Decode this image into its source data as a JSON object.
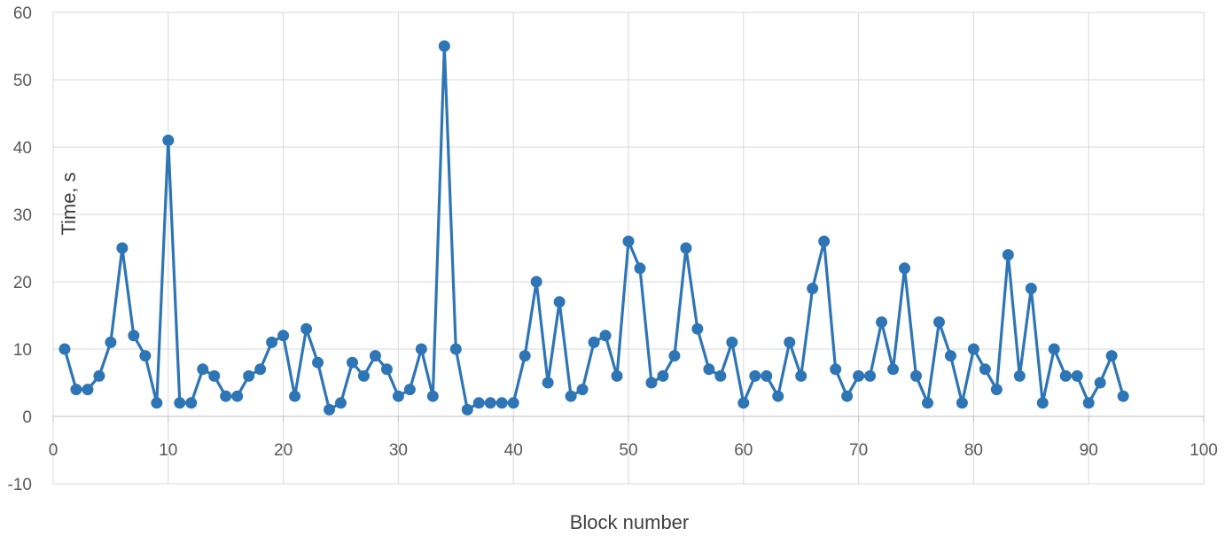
{
  "chart_data": {
    "type": "line",
    "title": "",
    "xlabel": "Block number",
    "ylabel": "Time, s",
    "xlim": [
      0,
      100
    ],
    "ylim": [
      -10,
      60
    ],
    "x_ticks": [
      0,
      10,
      20,
      30,
      40,
      50,
      60,
      70,
      80,
      90,
      100
    ],
    "y_ticks": [
      -10,
      0,
      10,
      20,
      30,
      40,
      50,
      60
    ],
    "grid": true,
    "legend": "none",
    "series": [
      {
        "color": "#2e75b6",
        "marker": "circle",
        "x": [
          1,
          2,
          3,
          4,
          5,
          6,
          7,
          8,
          9,
          10,
          11,
          12,
          13,
          14,
          15,
          16,
          17,
          18,
          19,
          20,
          21,
          22,
          23,
          24,
          25,
          26,
          27,
          28,
          29,
          30,
          31,
          32,
          33,
          34,
          35,
          36,
          37,
          38,
          39,
          40,
          41,
          42,
          43,
          44,
          45,
          46,
          47,
          48,
          49,
          50,
          51,
          52,
          53,
          54,
          55,
          56,
          57,
          58,
          59,
          60,
          61,
          62,
          63,
          64,
          65,
          66,
          67,
          68,
          69,
          70,
          71,
          72,
          73,
          74,
          75,
          76,
          77,
          78,
          79,
          80,
          81,
          82,
          83,
          84,
          85,
          86,
          87,
          88,
          89,
          90,
          91,
          92,
          93
        ],
        "values": [
          10,
          4,
          4,
          6,
          11,
          25,
          12,
          9,
          2,
          41,
          2,
          2,
          7,
          6,
          3,
          3,
          6,
          7,
          11,
          12,
          3,
          13,
          8,
          1,
          2,
          8,
          6,
          9,
          7,
          3,
          4,
          10,
          3,
          55,
          10,
          1,
          2,
          2,
          2,
          2,
          9,
          20,
          5,
          17,
          3,
          4,
          11,
          12,
          6,
          26,
          22,
          5,
          6,
          9,
          25,
          13,
          7,
          6,
          11,
          2,
          6,
          6,
          3,
          11,
          6,
          19,
          26,
          7,
          3,
          6,
          6,
          14,
          7,
          22,
          6,
          2,
          14,
          9,
          2,
          10,
          7,
          4,
          24,
          6,
          19,
          2,
          10,
          6,
          6,
          2,
          5,
          9,
          3
        ]
      }
    ]
  }
}
